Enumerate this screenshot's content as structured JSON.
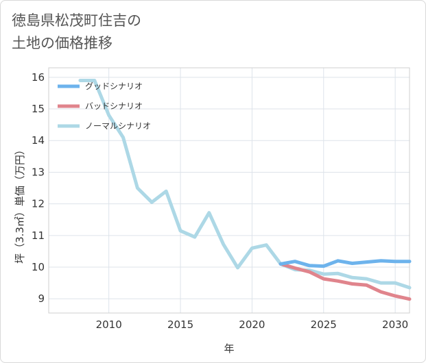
{
  "page": {
    "title_line1": "徳島県松茂町住吉の",
    "title_line2": "土地の価格推移"
  },
  "chart_data": {
    "type": "line",
    "xlabel": "年",
    "ylabel": "坪（3.3㎡）単価（万円）",
    "xlim": [
      2005.8,
      2031
    ],
    "ylim": [
      8.55,
      16.3
    ],
    "x_ticks": [
      2010,
      2015,
      2020,
      2025,
      2030
    ],
    "y_ticks": [
      9,
      10,
      11,
      12,
      13,
      14,
      15,
      16
    ],
    "grid": true,
    "legend_position": "top-left",
    "series": [
      {
        "name": "グッドシナリオ",
        "color": "#6db3ec",
        "x": [
          2022,
          2023,
          2024,
          2025,
          2026,
          2027,
          2028,
          2029,
          2030,
          2031
        ],
        "y": [
          10.1,
          10.18,
          10.05,
          10.03,
          10.2,
          10.12,
          10.16,
          10.2,
          10.18,
          10.18
        ]
      },
      {
        "name": "バッドシナリオ",
        "color": "#e0848c",
        "x": [
          2022,
          2023,
          2024,
          2025,
          2026,
          2027,
          2028,
          2029,
          2030,
          2031
        ],
        "y": [
          10.1,
          9.97,
          9.85,
          9.63,
          9.56,
          9.47,
          9.43,
          9.22,
          9.09,
          8.99
        ]
      },
      {
        "name": "ノーマルシナリオ",
        "color": "#add8e6",
        "x": [
          2008,
          2009,
          2010,
          2011,
          2012,
          2013,
          2014,
          2015,
          2016,
          2017,
          2018,
          2019,
          2020,
          2021,
          2022,
          2023,
          2024,
          2025,
          2026,
          2027,
          2028,
          2029,
          2030,
          2031
        ],
        "y": [
          15.9,
          15.9,
          14.8,
          14.1,
          12.5,
          12.05,
          12.4,
          11.15,
          10.95,
          11.72,
          10.72,
          9.98,
          10.6,
          10.7,
          10.1,
          9.92,
          9.9,
          9.78,
          9.8,
          9.67,
          9.63,
          9.5,
          9.5,
          9.35
        ]
      }
    ]
  }
}
